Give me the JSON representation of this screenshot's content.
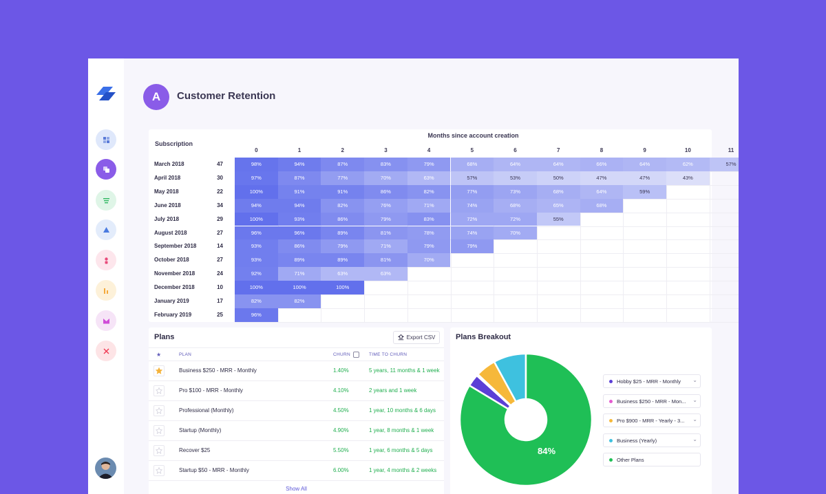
{
  "header": {
    "icon_letter": "A",
    "title": "Customer Retention"
  },
  "sidebar": {
    "items": [
      {
        "icon": "dashboard-icon",
        "color": "#dfe8fb",
        "fg": "#5a7bd8"
      },
      {
        "icon": "cohort-icon",
        "color": "#8a5ce8",
        "fg": "#ffffff"
      },
      {
        "icon": "list-icon",
        "color": "#dff5e7",
        "fg": "#2db760"
      },
      {
        "icon": "triangle-icon",
        "color": "#e3ecfb",
        "fg": "#4a7be0"
      },
      {
        "icon": "user-icon",
        "color": "#fde6ec",
        "fg": "#e84a7a"
      },
      {
        "icon": "bar-chart-icon",
        "color": "#fdf1d9",
        "fg": "#f4a93a"
      },
      {
        "icon": "mail-icon",
        "color": "#f6e4f7",
        "fg": "#d04bd8"
      },
      {
        "icon": "tools-icon",
        "color": "#fde4e6",
        "fg": "#ef3a53"
      }
    ]
  },
  "cohort": {
    "title": "Months since account creation",
    "subscription_label": "Subscription",
    "months": [
      "0",
      "1",
      "2",
      "3",
      "4",
      "5",
      "6",
      "7",
      "8",
      "9",
      "10",
      "11"
    ],
    "rows": [
      {
        "label": "March 2018",
        "count": "47",
        "values": [
          "98%",
          "94%",
          "87%",
          "83%",
          "79%",
          "68%",
          "64%",
          "64%",
          "66%",
          "64%",
          "62%",
          "57%"
        ]
      },
      {
        "label": "April 2018",
        "count": "30",
        "values": [
          "97%",
          "87%",
          "77%",
          "70%",
          "63%",
          "57%",
          "53%",
          "50%",
          "47%",
          "47%",
          "43%"
        ]
      },
      {
        "label": "May 2018",
        "count": "22",
        "values": [
          "100%",
          "91%",
          "91%",
          "86%",
          "82%",
          "77%",
          "73%",
          "68%",
          "64%",
          "59%"
        ]
      },
      {
        "label": "June 2018",
        "count": "34",
        "values": [
          "94%",
          "94%",
          "82%",
          "76%",
          "71%",
          "74%",
          "68%",
          "65%",
          "68%"
        ]
      },
      {
        "label": "July 2018",
        "count": "29",
        "values": [
          "100%",
          "93%",
          "86%",
          "79%",
          "83%",
          "72%",
          "72%",
          "55%"
        ]
      },
      {
        "label": "August 2018",
        "count": "27",
        "values": [
          "96%",
          "96%",
          "89%",
          "81%",
          "78%",
          "74%",
          "70%"
        ]
      },
      {
        "label": "September 2018",
        "count": "14",
        "values": [
          "93%",
          "86%",
          "79%",
          "71%",
          "79%",
          "79%"
        ]
      },
      {
        "label": "October 2018",
        "count": "27",
        "values": [
          "93%",
          "89%",
          "89%",
          "81%",
          "70%"
        ]
      },
      {
        "label": "November 2018",
        "count": "24",
        "values": [
          "92%",
          "71%",
          "63%",
          "63%"
        ]
      },
      {
        "label": "December 2018",
        "count": "10",
        "values": [
          "100%",
          "100%",
          "100%"
        ]
      },
      {
        "label": "January 2019",
        "count": "17",
        "values": [
          "82%",
          "82%"
        ]
      },
      {
        "label": "February 2019",
        "count": "25",
        "values": [
          "96%"
        ]
      }
    ]
  },
  "plans": {
    "title": "Plans",
    "export_label": "Export CSV",
    "columns": {
      "plan": "PLAN",
      "churn": "CHURN",
      "time": "TIME TO CHURN"
    },
    "rows": [
      {
        "name": "Business $250 - MRR - Monthly",
        "churn": "1.40%",
        "time": "5 years, 11 months & 1 week",
        "starred": true
      },
      {
        "name": "Pro $100 - MRR - Monthly",
        "churn": "4.10%",
        "time": "2 years and 1 week",
        "starred": false
      },
      {
        "name": "Professional (Monthly)",
        "churn": "4.50%",
        "time": "1 year, 10 months & 6 days",
        "starred": false
      },
      {
        "name": "Startup (Monthly)",
        "churn": "4.90%",
        "time": "1 year, 8 months & 1 week",
        "starred": false
      },
      {
        "name": "Recover $25",
        "churn": "5.50%",
        "time": "1 year, 6 months & 5 days",
        "starred": false
      },
      {
        "name": "Startup $50 - MRR - Monthly",
        "churn": "6.00%",
        "time": "1 year, 4 months & 2 weeks",
        "starred": false
      }
    ],
    "show_all": "Show All"
  },
  "breakout": {
    "title": "Plans Breakout",
    "center_label": "84%",
    "legend": [
      {
        "label": "Hobby $25 - MRR - Monthly",
        "color": "#5b3fd6",
        "value": 3
      },
      {
        "label": "Business $250 - MRR - Mon...",
        "color": "#e45ad0",
        "value": 0.4
      },
      {
        "label": "Pro $900 - MRR - Yearly - 3...",
        "color": "#f6b83a",
        "value": 5
      },
      {
        "label": "Business (Yearly)",
        "color": "#3ec1df",
        "value": 8
      },
      {
        "label": "Other Plans",
        "color": "#1fbf56",
        "value": 84
      }
    ]
  }
}
